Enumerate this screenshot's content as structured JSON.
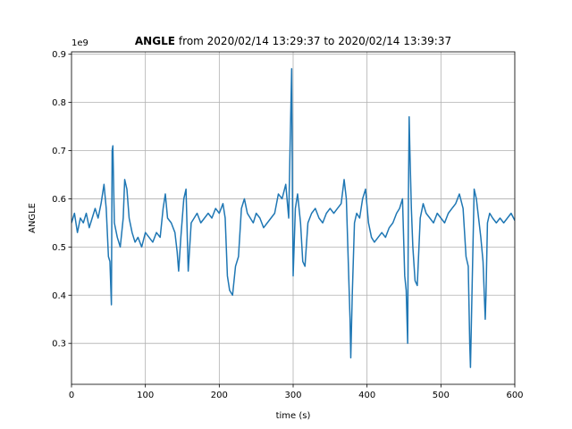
{
  "chart_data": {
    "type": "line",
    "title": {
      "bold": "ANGLE",
      "rest": "from 2020/02/14 13:29:37 to 2020/02/14 13:39:37"
    },
    "xlabel": "time (s)",
    "ylabel": "ANGLE",
    "offset_label": "1e9",
    "xlim": [
      0,
      600
    ],
    "xticks": [
      0,
      100,
      200,
      300,
      400,
      500,
      600
    ],
    "ylim": [
      0.215,
      0.905
    ],
    "yticks": [
      0.3,
      0.4,
      0.5,
      0.6,
      0.7,
      0.8,
      0.9
    ],
    "grid": true,
    "series": [
      {
        "color": "#1f77b4",
        "x": [
          0,
          4,
          8,
          12,
          16,
          20,
          24,
          28,
          32,
          36,
          40,
          44,
          47,
          50,
          52,
          54,
          55,
          56,
          58,
          62,
          66,
          70,
          72,
          75,
          78,
          82,
          86,
          90,
          95,
          100,
          105,
          110,
          115,
          120,
          124,
          127,
          130,
          135,
          140,
          143,
          145,
          148,
          152,
          155,
          158,
          162,
          166,
          170,
          175,
          180,
          185,
          190,
          195,
          200,
          205,
          208,
          211,
          214,
          218,
          222,
          226,
          230,
          234,
          238,
          242,
          246,
          250,
          255,
          260,
          265,
          270,
          275,
          280,
          285,
          290,
          294,
          296,
          298,
          299,
          300,
          303,
          306,
          310,
          313,
          316,
          320,
          325,
          330,
          335,
          340,
          345,
          350,
          355,
          360,
          365,
          369,
          372,
          375,
          377,
          378,
          380,
          383,
          386,
          390,
          394,
          398,
          402,
          406,
          410,
          415,
          420,
          425,
          430,
          435,
          440,
          444,
          448,
          451,
          453,
          455,
          456,
          457,
          458,
          460,
          462,
          465,
          468,
          472,
          476,
          480,
          485,
          490,
          495,
          500,
          505,
          510,
          515,
          520,
          525,
          530,
          534,
          537,
          539,
          540,
          542,
          545,
          548,
          551,
          554,
          557,
          560,
          561,
          563,
          566,
          570,
          575,
          580,
          585,
          590,
          595,
          600
        ],
        "values": [
          0.55,
          0.57,
          0.53,
          0.56,
          0.55,
          0.57,
          0.54,
          0.56,
          0.58,
          0.56,
          0.59,
          0.63,
          0.58,
          0.48,
          0.47,
          0.38,
          0.7,
          0.71,
          0.55,
          0.52,
          0.5,
          0.56,
          0.64,
          0.62,
          0.56,
          0.53,
          0.51,
          0.52,
          0.5,
          0.53,
          0.52,
          0.51,
          0.53,
          0.52,
          0.58,
          0.61,
          0.56,
          0.55,
          0.53,
          0.49,
          0.45,
          0.52,
          0.6,
          0.62,
          0.45,
          0.55,
          0.56,
          0.57,
          0.55,
          0.56,
          0.57,
          0.56,
          0.58,
          0.57,
          0.59,
          0.56,
          0.44,
          0.41,
          0.4,
          0.46,
          0.48,
          0.58,
          0.6,
          0.57,
          0.56,
          0.55,
          0.57,
          0.56,
          0.54,
          0.55,
          0.56,
          0.57,
          0.61,
          0.6,
          0.63,
          0.56,
          0.72,
          0.87,
          0.62,
          0.44,
          0.58,
          0.61,
          0.55,
          0.47,
          0.46,
          0.55,
          0.57,
          0.58,
          0.56,
          0.55,
          0.57,
          0.58,
          0.57,
          0.58,
          0.59,
          0.64,
          0.6,
          0.45,
          0.35,
          0.27,
          0.4,
          0.55,
          0.57,
          0.56,
          0.6,
          0.62,
          0.55,
          0.52,
          0.51,
          0.52,
          0.53,
          0.52,
          0.54,
          0.55,
          0.57,
          0.58,
          0.6,
          0.44,
          0.41,
          0.3,
          0.6,
          0.77,
          0.7,
          0.58,
          0.5,
          0.43,
          0.42,
          0.56,
          0.59,
          0.57,
          0.56,
          0.55,
          0.57,
          0.56,
          0.55,
          0.57,
          0.58,
          0.59,
          0.61,
          0.58,
          0.48,
          0.46,
          0.3,
          0.25,
          0.4,
          0.62,
          0.6,
          0.56,
          0.52,
          0.47,
          0.35,
          0.4,
          0.55,
          0.57,
          0.56,
          0.55,
          0.56,
          0.55,
          0.56,
          0.57,
          0.555
        ]
      }
    ]
  }
}
